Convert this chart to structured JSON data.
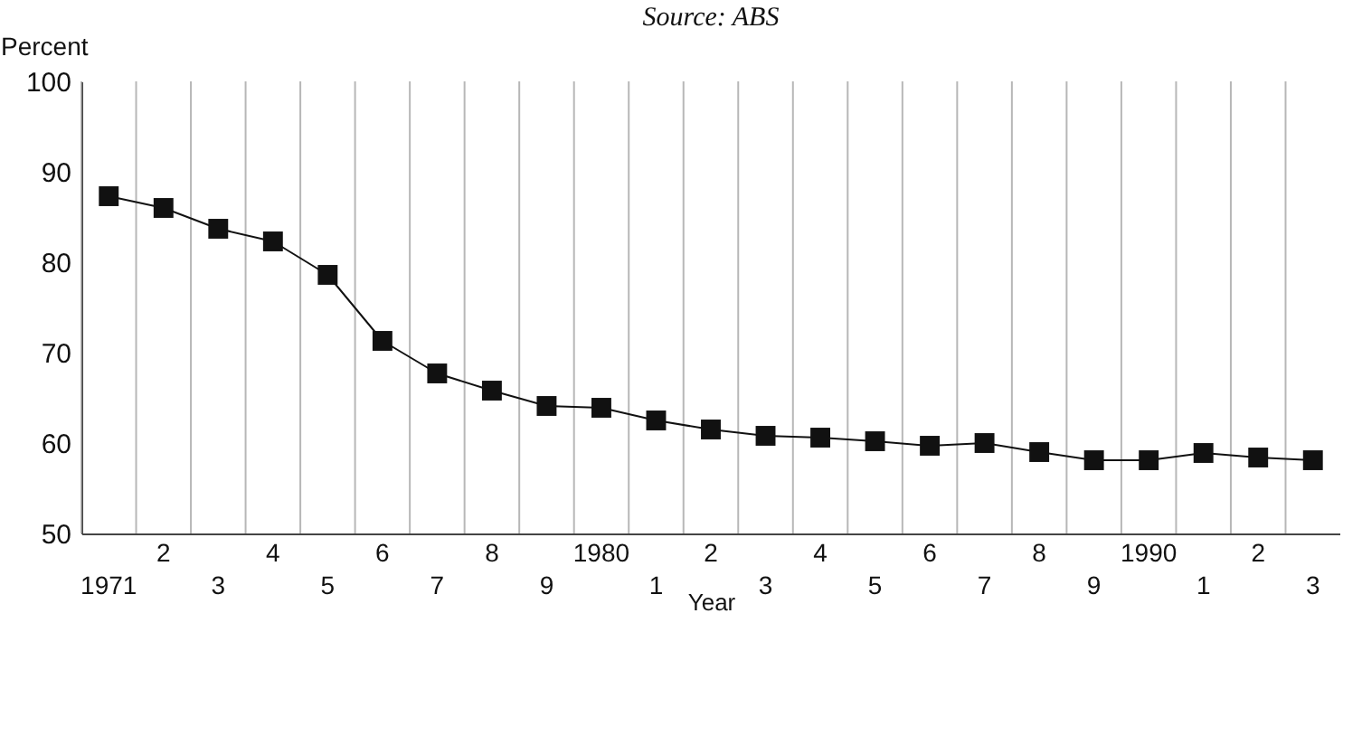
{
  "chart_data": {
    "type": "line",
    "annotations": [
      "Source: ABS"
    ],
    "ylabel": "Percent",
    "xlabel": "Year",
    "categories": [
      "1971",
      "2",
      "3",
      "4",
      "5",
      "6",
      "7",
      "8",
      "9",
      "1980",
      "1",
      "2",
      "3",
      "4",
      "5",
      "6",
      "7",
      "8",
      "9",
      "1990",
      "1",
      "2",
      "3"
    ],
    "series": [
      {
        "color": "#111111",
        "values": [
          87.3,
          86.0,
          83.7,
          82.3,
          78.6,
          71.3,
          67.7,
          65.8,
          64.1,
          63.9,
          62.5,
          61.5,
          60.8,
          60.6,
          60.2,
          59.7,
          60.0,
          59.0,
          58.1,
          58.1,
          58.9,
          58.4,
          58.1
        ]
      }
    ],
    "ylim": [
      50,
      100
    ],
    "yticks": [
      50,
      60,
      70,
      80,
      90,
      100
    ],
    "grid": "x",
    "marker": "square",
    "line_style": "solid",
    "legend": false
  }
}
